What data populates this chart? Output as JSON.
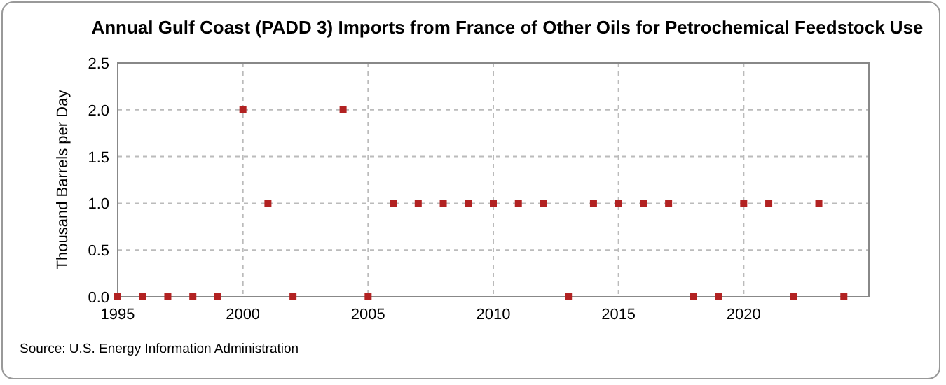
{
  "chart_data": {
    "type": "scatter",
    "title": "Annual Gulf Coast (PADD 3) Imports from France of Other Oils for Petrochemical Feedstock Use",
    "ylabel": "Thousand Barrels per Day",
    "x": [
      1995,
      1996,
      1997,
      1998,
      1999,
      2000,
      2001,
      2002,
      2004,
      2005,
      2006,
      2007,
      2008,
      2009,
      2010,
      2011,
      2012,
      2013,
      2014,
      2015,
      2016,
      2017,
      2018,
      2019,
      2020,
      2021,
      2022,
      2023,
      2024
    ],
    "series": [
      {
        "color": "#b22222",
        "values": [
          0,
          0,
          0,
          0,
          0,
          2,
          1,
          0,
          2,
          0,
          1,
          1,
          1,
          1,
          1,
          1,
          1,
          0,
          1,
          1,
          1,
          1,
          0,
          0,
          1,
          1,
          0,
          1,
          0
        ]
      }
    ],
    "xlim": [
      1995,
      2025
    ],
    "xticks": [
      1995,
      2000,
      2005,
      2010,
      2015,
      2020
    ],
    "ylim": [
      0,
      2.5
    ],
    "yticks": [
      {
        "value": 0,
        "label": "0.0"
      },
      {
        "value": 0.5,
        "label": "0.5"
      },
      {
        "value": 1,
        "label": "1.0"
      },
      {
        "value": 1.5,
        "label": "1.5"
      },
      {
        "value": 2,
        "label": "2.0"
      },
      {
        "value": 2.5,
        "label": "2.5"
      }
    ],
    "grid": true,
    "marker": "square",
    "annotations": [
      "Source: U.S. Energy Information Administration"
    ]
  }
}
